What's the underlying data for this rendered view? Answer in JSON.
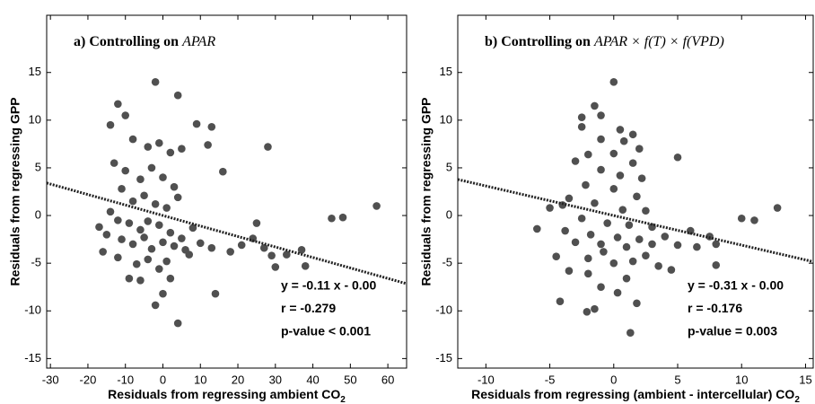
{
  "chart_data": [
    {
      "type": "scatter",
      "title": "a) Controlling on",
      "title_math": "APAR",
      "xlabel": "Residuals from regressing ambient CO",
      "xlabel_sub": "2",
      "ylabel": "Residuals from regressing GPP",
      "xlim": [
        -31,
        65
      ],
      "ylim": [
        -16,
        21
      ],
      "xticks": [
        -30,
        -20,
        -10,
        0,
        10,
        20,
        30,
        40,
        50,
        60
      ],
      "yticks": [
        -15,
        -10,
        -5,
        0,
        5,
        10,
        15
      ],
      "color": "#505050",
      "x": [
        -12,
        -10,
        -2,
        4,
        9,
        13,
        28,
        -14,
        -8,
        -4,
        -1,
        2,
        5,
        12,
        16,
        -13,
        -10,
        -6,
        -3,
        0,
        3,
        -11,
        -8,
        -5,
        -2,
        1,
        4,
        -14,
        -12,
        -9,
        -6,
        -4,
        -1,
        2,
        5,
        8,
        -17,
        -15,
        -11,
        -8,
        -5,
        -3,
        0,
        3,
        6,
        10,
        13,
        18,
        21,
        24,
        25,
        27,
        29,
        30,
        33,
        37,
        38,
        45,
        48,
        57,
        -12,
        -7,
        -4,
        -1,
        2,
        -6,
        0,
        -2,
        4,
        14,
        -9,
        -16,
        1,
        7
      ],
      "y": [
        11.7,
        10.5,
        14,
        12.6,
        9.6,
        9.3,
        7.2,
        9.5,
        8,
        7.2,
        7.6,
        6.6,
        7,
        7.4,
        4.6,
        5.5,
        4.7,
        3.8,
        5,
        4,
        3,
        2.8,
        1.5,
        2.1,
        1.2,
        0.8,
        1.9,
        0.4,
        -0.5,
        -0.8,
        -1.5,
        -0.6,
        -1,
        -1.8,
        -2.4,
        -1.3,
        -1.2,
        -2,
        -2.5,
        -3,
        -2.3,
        -3.5,
        -2.8,
        -3.2,
        -3.6,
        -2.9,
        -3.4,
        -3.8,
        -3.1,
        -2.4,
        -0.8,
        -3.4,
        -4.2,
        -5.4,
        -4.1,
        -3.6,
        -5.3,
        -0.3,
        -0.2,
        1,
        -4.4,
        -5.1,
        -4.6,
        -5.6,
        -6.6,
        -6.8,
        -8.2,
        -9.4,
        -11.3,
        -8.2,
        -6.6,
        -3.8,
        -4.8,
        -4.1
      ],
      "fit_x": [
        -31,
        65
      ],
      "fit_y": [
        3.41,
        -7.15
      ],
      "annotations": [
        "y = -0.11 x - 0.00",
        "r = -0.279",
        "p-value < 0.001"
      ]
    },
    {
      "type": "scatter",
      "title": "b) Controlling on",
      "title_math": "APAR × f(T) × f(VPD)",
      "xlabel": "Residuals from regressing (ambient - intercellular) CO",
      "xlabel_sub": "2",
      "ylabel": "Residuals from regressing GPP",
      "xlim": [
        -12.2,
        15.6
      ],
      "ylim": [
        -16,
        21
      ],
      "xticks": [
        -10,
        -5,
        0,
        5,
        10,
        15
      ],
      "yticks": [
        -15,
        -10,
        -5,
        0,
        5,
        10,
        15
      ],
      "color": "#505050",
      "x": [
        0,
        -1.5,
        -2.5,
        -1,
        0.5,
        1.5,
        -2.5,
        -1,
        0.8,
        2,
        -2,
        0,
        1.5,
        5,
        -3,
        -1,
        0.5,
        2.2,
        -2.2,
        0,
        1.8,
        -3.5,
        -1.5,
        0.7,
        2.5,
        -4,
        -5,
        -2.5,
        -0.5,
        1.2,
        3,
        -6,
        -3.8,
        -1.8,
        0.3,
        2,
        4,
        6,
        -3,
        -1,
        1,
        3,
        5,
        7.5,
        8,
        10,
        11,
        12.8,
        6.5,
        8,
        -4.5,
        -2,
        0,
        1.5,
        3.5,
        4.5,
        -2,
        1,
        -3.5,
        -4.2,
        -2.1,
        -1.5,
        1.8,
        0.3,
        1.3,
        -1,
        2.5,
        -0.8
      ],
      "y": [
        14,
        11.5,
        10.3,
        10.5,
        9,
        8.5,
        9.3,
        8,
        7.8,
        7,
        6.4,
        6.5,
        5.5,
        6.1,
        5.7,
        4.8,
        4.2,
        3.9,
        3.2,
        2.8,
        2,
        1.8,
        1.3,
        0.6,
        0.5,
        1.1,
        0.8,
        -0.3,
        -0.8,
        -1,
        -1.2,
        -1.4,
        -1.6,
        -2,
        -2.3,
        -2.5,
        -2.2,
        -1.6,
        -2.8,
        -3,
        -3.3,
        -3,
        -3.1,
        -2.2,
        -3,
        -0.3,
        -0.5,
        0.8,
        -3.3,
        -5.2,
        -4.3,
        -4.5,
        -5,
        -4.8,
        -5.3,
        -5.7,
        -6.1,
        -6.6,
        -5.8,
        -9,
        -10.1,
        -9.8,
        -9.2,
        -8.1,
        -12.3,
        -7.5,
        -4.2,
        -3.8
      ],
      "fit_x": [
        -12.2,
        15.6
      ],
      "fit_y": [
        3.78,
        -4.84
      ],
      "annotations": [
        "y = -0.31 x - 0.00",
        "r = -0.176",
        "p-value = 0.003"
      ]
    }
  ]
}
